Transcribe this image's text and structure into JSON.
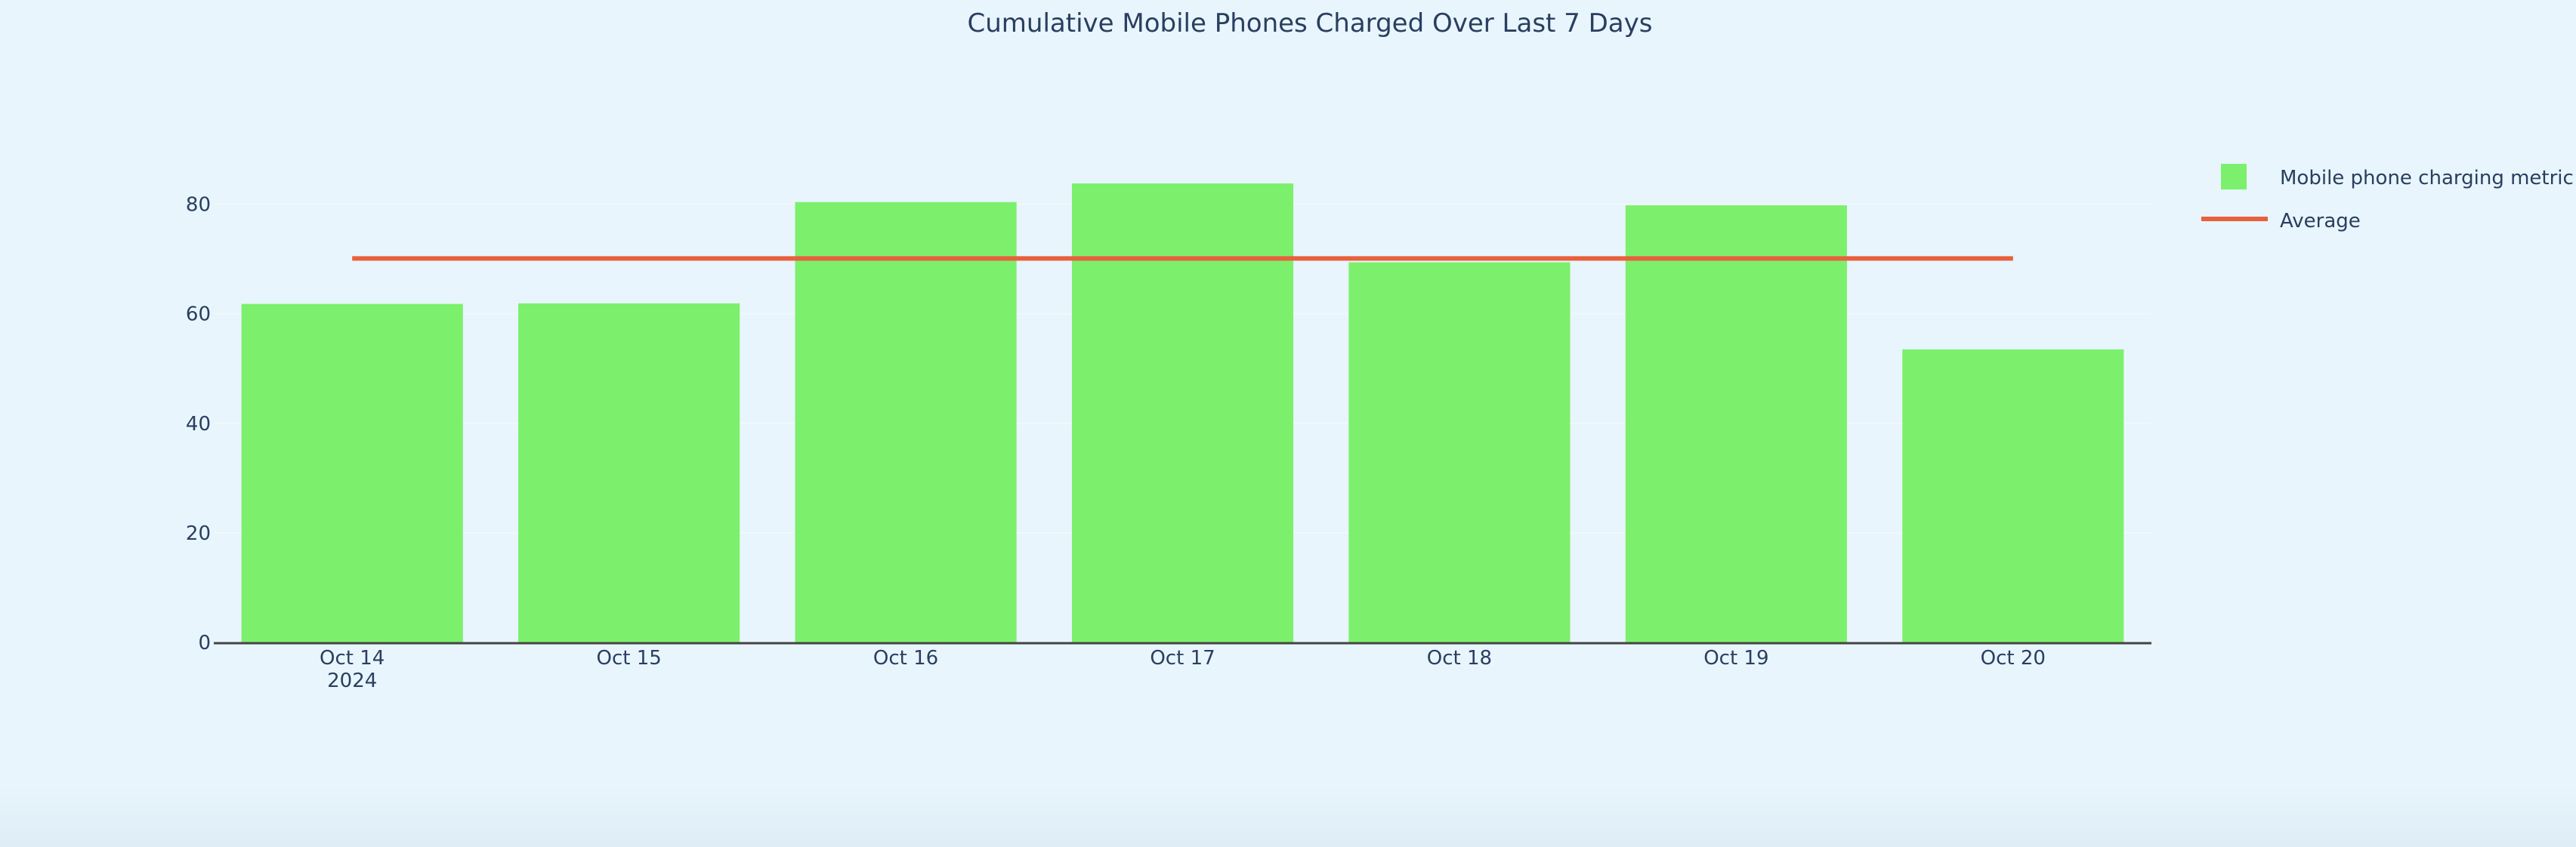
{
  "chart_data": {
    "type": "bar",
    "title": "Cumulative Mobile Phones Charged Over Last 7 Days",
    "xlabel": "",
    "ylabel": "",
    "categories": [
      "Oct 14",
      "Oct 15",
      "Oct 16",
      "Oct 17",
      "Oct 18",
      "Oct 19",
      "Oct 20"
    ],
    "category_sublabels": [
      "2024",
      "",
      "",
      "",
      "",
      "",
      ""
    ],
    "series": [
      {
        "name": "Mobile phone charging metric",
        "type": "bar",
        "values": [
          61.8,
          61.9,
          80.4,
          83.8,
          69.4,
          79.8,
          53.5
        ]
      },
      {
        "name": "Average",
        "type": "line",
        "values": [
          70.1,
          70.1,
          70.1,
          70.1,
          70.1,
          70.1,
          70.1
        ]
      }
    ],
    "ylim": [
      0,
      90
    ],
    "yticks": [
      0,
      20,
      40,
      60,
      80
    ],
    "grid": true,
    "legend_position": "top-right",
    "colors": {
      "background": "#e8f5fd",
      "bar": "#7cf06c",
      "average_line": "#e8603c",
      "axis_line": "#444444",
      "grid": "#f2f7fb",
      "text": "#2a3f5f"
    }
  }
}
